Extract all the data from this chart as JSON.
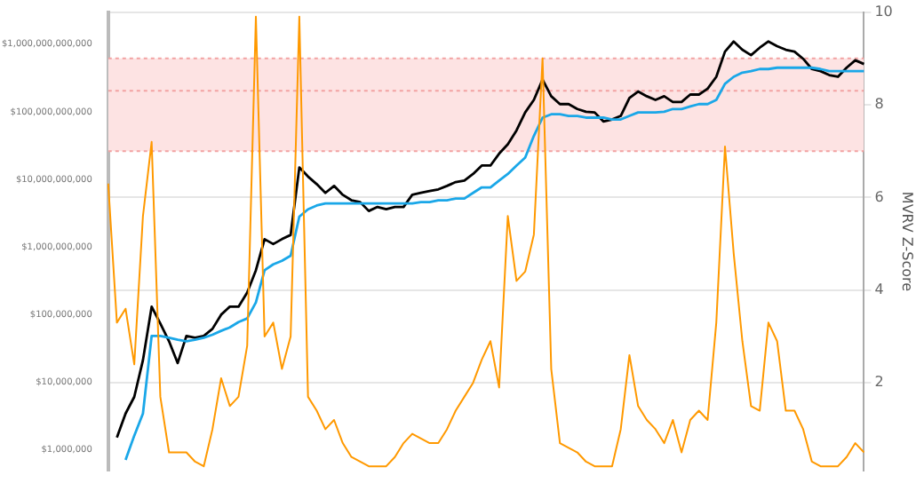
{
  "chart_data": {
    "type": "line",
    "y2label": "MVRV Z-Score",
    "categories": [
      null,
      null,
      null,
      null,
      null,
      null,
      null,
      null,
      null,
      null,
      null,
      null,
      null,
      null,
      null,
      null,
      null,
      null,
      null,
      null,
      null,
      null,
      null,
      null,
      null,
      null,
      null,
      null,
      null,
      null,
      null,
      null,
      null,
      null,
      null,
      null,
      null,
      null,
      null,
      null,
      null,
      null,
      null,
      null,
      null,
      null,
      null,
      null,
      null,
      null,
      null,
      null,
      null,
      null,
      null,
      null,
      null,
      null,
      null,
      null,
      null,
      null,
      null,
      null,
      null,
      null,
      null,
      null,
      null,
      null,
      null,
      null,
      null,
      null,
      null,
      null,
      null,
      null,
      null,
      null,
      null,
      null,
      null,
      null,
      null,
      null,
      null,
      null
    ],
    "series": [
      {
        "color": "#ff9900",
        "axis": "y2",
        "values": [
          6.3,
          3.3,
          3.6,
          2.4,
          5.6,
          7.2,
          1.7,
          0.5,
          0.5,
          0.5,
          0.3,
          0.2,
          1.0,
          2.1,
          1.5,
          1.7,
          2.8,
          9.9,
          3.0,
          3.3,
          2.3,
          3.0,
          9.9,
          1.7,
          1.4,
          1.0,
          1.2,
          0.7,
          0.4,
          0.3,
          0.2,
          0.2,
          0.2,
          0.4,
          0.7,
          0.9,
          0.8,
          0.7,
          0.7,
          1.0,
          1.4,
          1.7,
          2.0,
          2.5,
          2.9,
          1.9,
          5.6,
          4.2,
          4.4,
          5.2,
          9.0,
          2.3,
          0.7,
          0.6,
          0.5,
          0.3,
          0.2,
          0.2,
          0.2,
          1.0,
          2.6,
          1.5,
          1.2,
          1.0,
          0.7,
          1.2,
          0.5,
          1.2,
          1.4,
          1.2,
          3.3,
          7.1,
          4.8,
          2.9,
          1.5,
          1.4,
          3.3,
          2.9,
          1.4,
          1.4,
          1.0,
          0.3,
          0.2,
          0.2,
          0.2,
          0.4,
          0.7,
          0.5
        ]
      },
      {
        "color": "#1aa7e8",
        "values": [
          null,
          null,
          700000.0,
          1600000.0,
          3400000.0,
          48000000.0,
          48000000.0,
          45000000.0,
          42000000.0,
          40000000.0,
          42000000.0,
          45000000.0,
          50000000.0,
          57000000.0,
          64000000.0,
          77000000.0,
          87000000.0,
          150000000.0,
          450000000.0,
          550000000.0,
          620000000.0,
          740000000.0,
          2800000000.0,
          3600000000.0,
          4100000000.0,
          4400000000.0,
          4400000000.0,
          4400000000.0,
          4400000000.0,
          4400000000.0,
          4400000000.0,
          4400000000.0,
          4400000000.0,
          4400000000.0,
          4400000000.0,
          4400000000.0,
          4600000000.0,
          4600000000.0,
          4900000000.0,
          4900000000.0,
          5200000000.0,
          5200000000.0,
          6300000000.0,
          7600000000.0,
          7600000000.0,
          9600000000.0,
          12000000000.0,
          16000000000.0,
          21000000000.0,
          44000000000.0,
          82000000000.0,
          92000000000.0,
          92000000000.0,
          87000000000.0,
          87000000000.0,
          82000000000.0,
          82000000000.0,
          82000000000.0,
          77000000000.0,
          77000000000.0,
          87000000000.0,
          98000000000.0,
          98000000000.0,
          98000000000.0,
          100000000000.0,
          110000000000.0,
          110000000000.0,
          120000000000.0,
          130000000000.0,
          130000000000.0,
          150000000000.0,
          260000000000.0,
          330000000000.0,
          380000000000.0,
          400000000000.0,
          430000000000.0,
          430000000000.0,
          450000000000.0,
          450000000000.0,
          450000000000.0,
          450000000000.0,
          450000000000.0,
          430000000000.0,
          400000000000.0,
          400000000000.0,
          400000000000.0,
          400000000000.0,
          400000000000.0
        ]
      },
      {
        "color": "#000000",
        "values": [
          null,
          1500000.0,
          3400000.0,
          6000000.0,
          21000000.0,
          130000000.0,
          73000000.0,
          40000000.0,
          19000000.0,
          48000000.0,
          45000000.0,
          48000000.0,
          61000000.0,
          99000000.0,
          130000000.0,
          130000000.0,
          210000000.0,
          450000000.0,
          1300000000.0,
          1100000000.0,
          1300000000.0,
          1500000000.0,
          15000000000.0,
          11000000000.0,
          8500000000.0,
          6300000000.0,
          8000000000.0,
          5900000000.0,
          4900000000.0,
          4600000000.0,
          3400000000.0,
          3900000000.0,
          3600000000.0,
          3900000000.0,
          3900000000.0,
          5900000000.0,
          6300000000.0,
          6700000000.0,
          7100000000.0,
          8000000000.0,
          9100000000.0,
          9600000000.0,
          12000000000.0,
          16000000000.0,
          16000000000.0,
          24000000000.0,
          33000000000.0,
          53000000000.0,
          98000000000.0,
          150000000000.0,
          300000000000.0,
          170000000000.0,
          130000000000.0,
          130000000000.0,
          110000000000.0,
          100000000000.0,
          98000000000.0,
          72000000000.0,
          77000000000.0,
          87000000000.0,
          160000000000.0,
          200000000000.0,
          170000000000.0,
          150000000000.0,
          170000000000.0,
          140000000000.0,
          140000000000.0,
          180000000000.0,
          180000000000.0,
          220000000000.0,
          330000000000.0,
          780000000000.0,
          1100000000000.0,
          830000000000.0,
          690000000000.0,
          890000000000.0,
          1100000000000.0,
          940000000000.0,
          830000000000.0,
          780000000000.0,
          610000000000.0,
          430000000000.0,
          400000000000.0,
          350000000000.0,
          330000000000.0,
          450000000000.0,
          580000000000.0,
          510000000000.0
        ]
      }
    ],
    "log": "y",
    "ylim": [
      480000,
      3000000000000
    ],
    "yticks": [
      {
        "value": 1000000,
        "label": "$1,000,000"
      },
      {
        "value": 10000000,
        "label": "$10,000,000"
      },
      {
        "value": 100000000,
        "label": "$100,000,000"
      },
      {
        "value": 1000000000,
        "label": "$1,000,000,000"
      },
      {
        "value": 10000000000,
        "label": "$10,000,000,000"
      },
      {
        "value": 100000000000,
        "label": "$100,000,000,000"
      },
      {
        "value": 1000000000000,
        "label": "$1,000,000,000,000"
      }
    ],
    "y2lim": [
      0.1,
      10
    ],
    "y2ticks": [
      2,
      4,
      6,
      8,
      10
    ],
    "bands": [
      {
        "axis": "y2",
        "from": 7,
        "to": 9,
        "color": "#fde3e3"
      }
    ],
    "ref_lines": [
      {
        "axis": "y2",
        "value": 9,
        "color": "#f2a3a3",
        "line_style": "dotted"
      },
      {
        "axis": "y2",
        "value": 8.3,
        "color": "#f2a3a3",
        "line_style": "dotted"
      },
      {
        "axis": "y2",
        "value": 7,
        "color": "#f2a3a3",
        "line_style": "dotted"
      }
    ],
    "grid": "y",
    "marker": "none",
    "line_style": "solid",
    "legend": false
  }
}
